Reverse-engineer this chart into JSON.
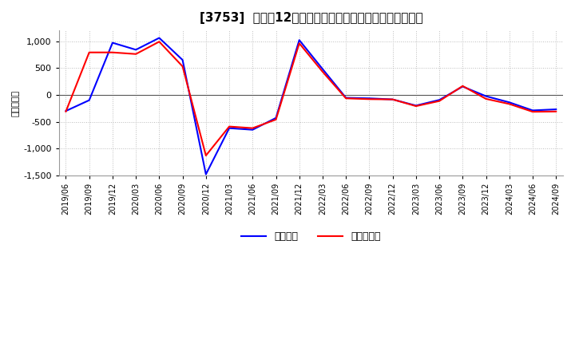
{
  "title": "[3753]  利益だ12か月移動合計の対前年同期増減額の推移",
  "ylabel": "（百万円）",
  "legend_labels": [
    "経常利益",
    "当期純利益"
  ],
  "line_colors": [
    "#0000ff",
    "#ff0000"
  ],
  "background_color": "#ffffff",
  "plot_bg_color": "#ffffff",
  "grid_color": "#aaaaaa",
  "ylim": [
    -1500,
    1200
  ],
  "yticks": [
    -1500,
    -1000,
    -500,
    0,
    500,
    1000
  ],
  "x_labels": [
    "2019/06",
    "2019/09",
    "2019/12",
    "2020/03",
    "2020/06",
    "2020/09",
    "2020/12",
    "2021/03",
    "2021/06",
    "2021/09",
    "2021/12",
    "2022/03",
    "2022/06",
    "2022/09",
    "2022/12",
    "2023/03",
    "2023/06",
    "2023/09",
    "2023/12",
    "2024/03",
    "2024/06",
    "2024/09"
  ],
  "operating_profit": [
    -300,
    -100,
    970,
    840,
    1060,
    650,
    -1480,
    -620,
    -650,
    -430,
    1020,
    480,
    -55,
    -65,
    -85,
    -200,
    -95,
    155,
    -25,
    -140,
    -290,
    -270
  ],
  "net_profit": [
    -310,
    790,
    790,
    760,
    990,
    530,
    -1130,
    -590,
    -620,
    -460,
    960,
    430,
    -65,
    -80,
    -85,
    -210,
    -115,
    165,
    -75,
    -170,
    -315,
    -310
  ]
}
